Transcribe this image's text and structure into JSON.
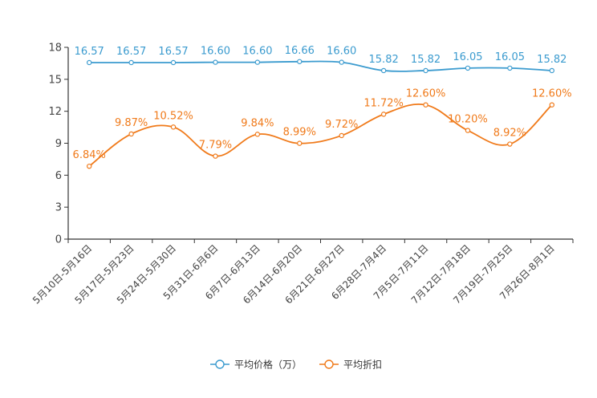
{
  "chart_data": {
    "type": "line",
    "title": "",
    "xlabel": "",
    "ylabel": "",
    "ylim": [
      0,
      18
    ],
    "yticks": [
      "0",
      "3",
      "6",
      "9",
      "12",
      "15",
      "18"
    ],
    "categories": [
      "5月10日-5月16日",
      "5月17日-5月23日",
      "5月24日-5月30日",
      "5月31日-6月6日",
      "6月7日-6月13日",
      "6月14日-6月20日",
      "6月21日-6月27日",
      "6月28日-7月4日",
      "7月5日-7月11日",
      "7月12日-7月18日",
      "7月19日-7月25日",
      "7月26日-8月1日"
    ],
    "series": [
      {
        "name": "平均价格（万）",
        "color": "#3b9bcf",
        "values": [
          16.57,
          16.57,
          16.57,
          16.6,
          16.6,
          16.66,
          16.6,
          15.82,
          15.82,
          16.05,
          16.05,
          15.82
        ],
        "labels": [
          "16.57",
          "16.57",
          "16.57",
          "16.60",
          "16.60",
          "16.66",
          "16.60",
          "15.82",
          "15.82",
          "16.05",
          "16.05",
          "15.82"
        ]
      },
      {
        "name": "平均折扣",
        "color": "#f07a1a",
        "values": [
          6.84,
          9.87,
          10.52,
          7.79,
          9.84,
          8.99,
          9.72,
          11.72,
          12.6,
          10.2,
          8.92,
          12.6
        ],
        "labels": [
          "6.84%",
          "9.87%",
          "10.52%",
          "7.79%",
          "9.84%",
          "8.99%",
          "9.72%",
          "11.72%",
          "12.60%",
          "10.20%",
          "8.92%",
          "12.60%"
        ]
      }
    ],
    "legend_position": "bottom-center"
  }
}
